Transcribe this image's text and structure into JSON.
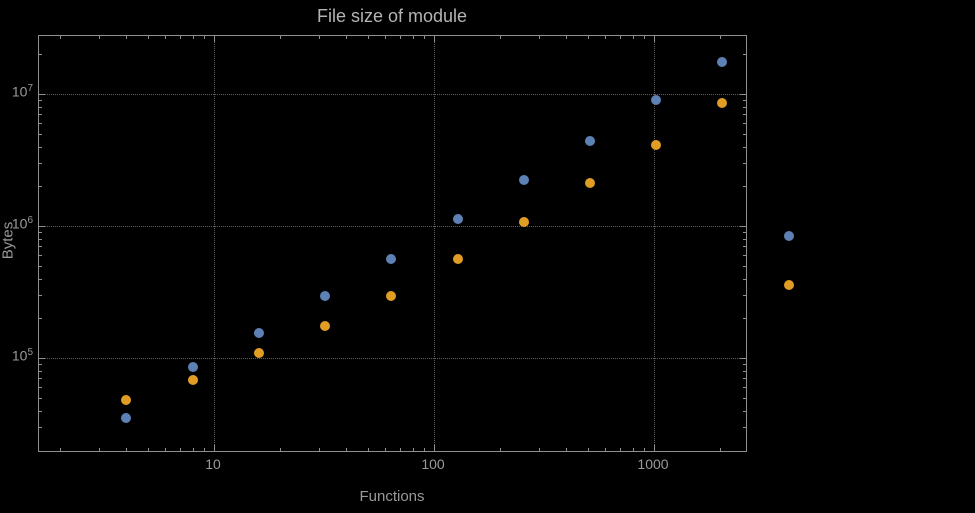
{
  "colors": {
    "background": "#000000",
    "frame": "#8f8f8f",
    "grid": "#5e5e5e",
    "text": "#999999",
    "title_text": "#b4b4b4",
    "series1": "#5e81b5",
    "series2": "#e19c24"
  },
  "chart_data": {
    "type": "scatter",
    "title": "File size of module",
    "xlabel": "Functions",
    "ylabel": "Bytes",
    "xscale": "log",
    "yscale": "log",
    "grid": true,
    "legend": "none",
    "xlim": [
      1.6,
      2600
    ],
    "ylim": [
      20000,
      27000000
    ],
    "xticks": [
      10,
      100,
      1000
    ],
    "yticks": [
      100000,
      1000000,
      10000000
    ],
    "x": [
      4,
      8,
      16,
      32,
      64,
      128,
      256,
      512,
      1024,
      2048,
      4096
    ],
    "series": [
      {
        "name": "series-1-blue",
        "color": "#5e81b5",
        "values": [
          35000,
          85000,
          155000,
          295000,
          560000,
          1130000,
          2250000,
          4400000,
          9000000,
          17500000,
          840000
        ]
      },
      {
        "name": "series-2-orange",
        "color": "#e19c24",
        "values": [
          48000,
          68000,
          110000,
          175000,
          295000,
          560000,
          1080000,
          2100000,
          4100000,
          8500000,
          360000
        ]
      }
    ]
  }
}
